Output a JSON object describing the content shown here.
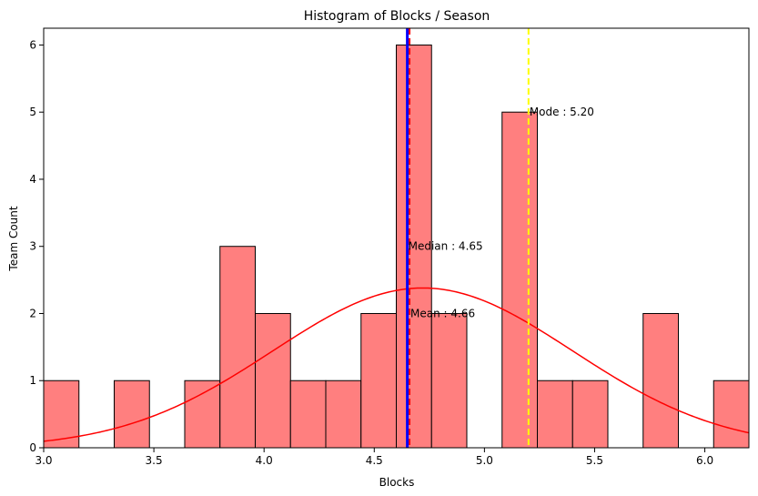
{
  "chart_data": {
    "type": "bar",
    "title": "Histogram of Blocks / Season",
    "xlabel": "Blocks",
    "ylabel": "Team Count",
    "xlim": [
      3.0,
      6.2
    ],
    "ylim": [
      0,
      6.25
    ],
    "xticks": [
      "3.0",
      "3.5",
      "4.0",
      "4.5",
      "5.0",
      "5.5",
      "6.0"
    ],
    "yticks": [
      "0",
      "1",
      "2",
      "3",
      "4",
      "5",
      "6"
    ],
    "bin_start": 3.0,
    "bin_width": 0.16,
    "counts": [
      1,
      0,
      1,
      0,
      1,
      3,
      2,
      1,
      1,
      2,
      6,
      2,
      0,
      5,
      1,
      1,
      0,
      2,
      0,
      1
    ],
    "bar_color": "#ff7f7f",
    "bar_edge_color": "#000000",
    "kde": {
      "color": "#ff0000",
      "mean": 4.72,
      "sd": 0.68,
      "peak": 2.38
    },
    "lines": [
      {
        "label": "Mean : 4.66",
        "value": 4.66,
        "color": "#ff0000",
        "style": "dashed",
        "label_y": 2.0
      },
      {
        "label": "Median : 4.65",
        "value": 4.65,
        "color": "#0000ff",
        "style": "solid",
        "label_y": 3.0
      },
      {
        "label": "Mode : 5.20",
        "value": 5.2,
        "color": "#ffff00",
        "style": "dashed",
        "label_y": 5.0
      }
    ],
    "grid": false,
    "legend": "none"
  }
}
